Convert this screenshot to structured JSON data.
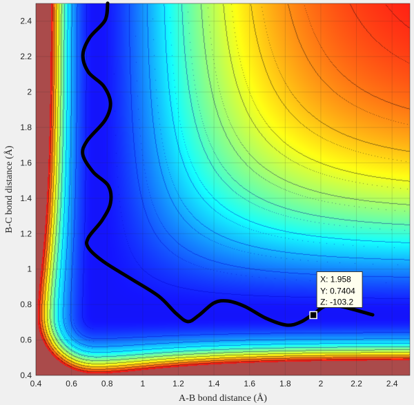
{
  "chart_data": {
    "type": "contour",
    "xlabel": "A-B bond distance (Å)",
    "ylabel": "B-C bond distance (Å)",
    "xlim": [
      0.4,
      2.5
    ],
    "ylim": [
      0.4,
      2.5
    ],
    "xticks": [
      "0.4",
      "0.6",
      "0.8",
      "1",
      "1.2",
      "1.4",
      "1.6",
      "1.8",
      "2",
      "2.2",
      "2.4"
    ],
    "yticks": [
      "0.4",
      "0.6",
      "0.8",
      "1",
      "1.2",
      "1.4",
      "1.6",
      "1.8",
      "2",
      "2.2",
      "2.4"
    ],
    "grid": true,
    "colormap": "jet",
    "trajectory": {
      "x": [
        0.803,
        0.788,
        0.702,
        0.664,
        0.695,
        0.78,
        0.819,
        0.788,
        0.687,
        0.664,
        0.722,
        0.807,
        0.819,
        0.772,
        0.695,
        0.695,
        0.78,
        0.935,
        1.09,
        1.187,
        1.253,
        1.315,
        1.4,
        1.478,
        1.574,
        1.691,
        1.807,
        1.884,
        1.954,
        2.059,
        2.291
      ],
      "y": [
        2.501,
        2.404,
        2.307,
        2.209,
        2.112,
        2.034,
        1.937,
        1.84,
        1.723,
        1.645,
        1.548,
        1.47,
        1.373,
        1.276,
        1.178,
        1.12,
        1.042,
        0.945,
        0.847,
        0.75,
        0.704,
        0.739,
        0.809,
        0.82,
        0.789,
        0.723,
        0.684,
        0.7,
        0.742,
        0.797,
        0.742
      ],
      "color": "#000000"
    },
    "datatip": {
      "x": 1.958,
      "y": 0.7404,
      "x_text": "X: 1.958",
      "y_text": "Y: 0.7404",
      "z_text": "Z: -103.2"
    }
  }
}
